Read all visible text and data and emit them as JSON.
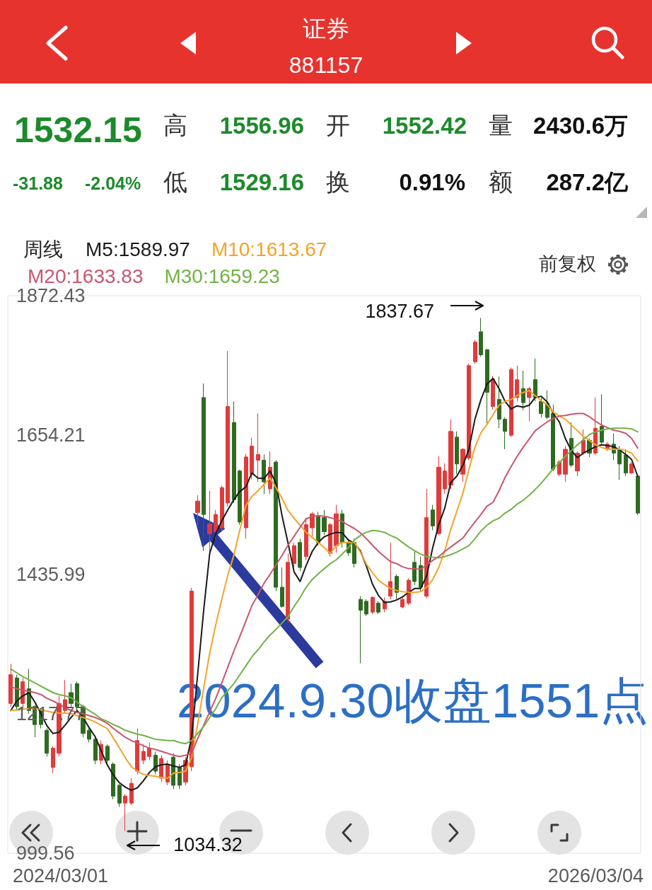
{
  "chart_data": {
    "type": "candlestick",
    "title": "证券",
    "subtitle": "881157",
    "legend_title": "周线",
    "categories": [
      null,
      null,
      null,
      null,
      null,
      null,
      null,
      null,
      null,
      null,
      null,
      null,
      null,
      null,
      null,
      null,
      null,
      null,
      null,
      null,
      null,
      null,
      null,
      null,
      null,
      null,
      null,
      null,
      null,
      null,
      null,
      null,
      null,
      null,
      null,
      null,
      null,
      null,
      null,
      null,
      null,
      null,
      null,
      null,
      null,
      null,
      null,
      null,
      null,
      null,
      null,
      null,
      null,
      null,
      null,
      null,
      null,
      null,
      null,
      null,
      null,
      null,
      null,
      null,
      null,
      null,
      null,
      null,
      null,
      null,
      null,
      null,
      null,
      null,
      null,
      null,
      null,
      null,
      null,
      null,
      null,
      null,
      null,
      null,
      null,
      null,
      null,
      null,
      null,
      null,
      null,
      null,
      null,
      null,
      null,
      null,
      null,
      null,
      null,
      null,
      null,
      null,
      null,
      null,
      null
    ],
    "ohlc": [
      [
        1234,
        1296,
        1229,
        1279
      ],
      [
        1274,
        1279,
        1223,
        1229
      ],
      [
        1234,
        1274,
        1226,
        1268
      ],
      [
        1257,
        1288,
        1218,
        1223
      ],
      [
        1229,
        1232,
        1181,
        1201
      ],
      [
        1223,
        1226,
        1195,
        1201
      ],
      [
        1192,
        1195,
        1151,
        1156
      ],
      [
        1134,
        1167,
        1125,
        1164
      ],
      [
        1156,
        1246,
        1151,
        1234
      ],
      [
        1223,
        1271,
        1218,
        1240
      ],
      [
        1251,
        1265,
        1229,
        1234
      ],
      [
        1265,
        1268,
        1223,
        1229
      ],
      [
        1229,
        1232,
        1181,
        1187
      ],
      [
        1192,
        1195,
        1173,
        1178
      ],
      [
        1178,
        1181,
        1139,
        1145
      ],
      [
        1145,
        1176,
        1139,
        1170
      ],
      [
        1167,
        1170,
        1139,
        1145
      ],
      [
        1139,
        1142,
        1084,
        1089
      ],
      [
        1106,
        1108,
        1072,
        1078
      ],
      [
        1078,
        1092,
        1034.32,
        1089
      ],
      [
        1078,
        1117,
        1075,
        1109
      ],
      [
        1128,
        1195,
        1123,
        1176
      ],
      [
        1145,
        1170,
        1139,
        1159
      ],
      [
        1151,
        1173,
        1145,
        1164
      ],
      [
        1153,
        1159,
        1123,
        1128
      ],
      [
        1117,
        1153,
        1111,
        1148
      ],
      [
        1111,
        1145,
        1106,
        1139
      ],
      [
        1150,
        1156,
        1100,
        1106
      ],
      [
        1134,
        1139,
        1100,
        1106
      ],
      [
        1111,
        1150,
        1106,
        1145
      ],
      [
        1135,
        1415,
        1128,
        1410
      ],
      [
        1533,
        1560,
        1513,
        1551
      ],
      [
        1713,
        1735,
        1473,
        1530
      ],
      [
        1500,
        1567,
        1470,
        1515
      ],
      [
        1503,
        1537,
        1492,
        1530
      ],
      [
        1509,
        1575,
        1503,
        1572
      ],
      [
        1548,
        1786,
        1542,
        1699
      ],
      [
        1674,
        1707,
        1548,
        1553
      ],
      [
        1598,
        1600,
        1514,
        1518
      ],
      [
        1509,
        1625,
        1492,
        1620
      ],
      [
        1593,
        1650,
        1585,
        1637
      ],
      [
        1615,
        1688,
        1581,
        1624
      ],
      [
        1615,
        1624,
        1562,
        1581
      ],
      [
        1570,
        1629,
        1562,
        1604
      ],
      [
        1612,
        1615,
        1410,
        1416
      ],
      [
        1416,
        1447,
        1384,
        1386
      ],
      [
        1366,
        1469,
        1360,
        1455
      ],
      [
        1453,
        1486,
        1447,
        1481
      ],
      [
        1486,
        1492,
        1441,
        1447
      ],
      [
        1464,
        1525,
        1458,
        1514
      ],
      [
        1509,
        1534,
        1495,
        1531
      ],
      [
        1528,
        1534,
        1481,
        1486
      ],
      [
        1525,
        1537,
        1498,
        1503
      ],
      [
        1469,
        1517,
        1464,
        1514
      ],
      [
        1481,
        1545,
        1470,
        1531
      ],
      [
        1531,
        1537,
        1478,
        1486
      ],
      [
        1486,
        1492,
        1465,
        1470
      ],
      [
        1486,
        1492,
        1447,
        1453
      ],
      [
        1397,
        1402,
        1297,
        1380
      ],
      [
        1394,
        1397,
        1371,
        1374
      ],
      [
        1377,
        1402,
        1374,
        1400
      ],
      [
        1391,
        1394,
        1374,
        1377
      ],
      [
        1382,
        1400,
        1377,
        1394
      ],
      [
        1402,
        1486,
        1397,
        1425
      ],
      [
        1433,
        1436,
        1397,
        1408
      ],
      [
        1385,
        1400,
        1383,
        1397
      ],
      [
        1391,
        1430,
        1388,
        1427
      ],
      [
        1455,
        1472,
        1419,
        1425
      ],
      [
        1450,
        1464,
        1410,
        1416
      ],
      [
        1402,
        1570,
        1399,
        1525
      ],
      [
        1537,
        1545,
        1505,
        1512
      ],
      [
        1500,
        1621,
        1497,
        1604
      ],
      [
        1570,
        1610,
        1562,
        1598
      ],
      [
        1576,
        1679,
        1570,
        1660
      ],
      [
        1651,
        1660,
        1593,
        1609
      ],
      [
        1593,
        1634,
        1581,
        1632
      ],
      [
        1618,
        1766,
        1615,
        1763
      ],
      [
        1769,
        1803,
        1766,
        1800
      ],
      [
        1816,
        1837.67,
        1777,
        1780
      ],
      [
        1788,
        1789,
        1673,
        1721
      ],
      [
        1699,
        1747,
        1694,
        1741
      ],
      [
        1710,
        1746,
        1665,
        1679
      ],
      [
        1679,
        1682,
        1632,
        1660
      ],
      [
        1654,
        1760,
        1651,
        1757
      ],
      [
        1713,
        1763,
        1707,
        1741
      ],
      [
        1727,
        1755,
        1693,
        1705
      ],
      [
        1713,
        1730,
        1676,
        1727
      ],
      [
        1741,
        1774,
        1707,
        1713
      ],
      [
        1707,
        1713,
        1682,
        1688
      ],
      [
        1704,
        1724,
        1679,
        1682
      ],
      [
        1688,
        1702,
        1598,
        1601
      ],
      [
        1593,
        1615,
        1590,
        1612
      ],
      [
        1593,
        1637,
        1581,
        1632
      ],
      [
        1649,
        1674,
        1604,
        1607
      ],
      [
        1598,
        1629,
        1590,
        1626
      ],
      [
        1626,
        1663,
        1623,
        1646
      ],
      [
        1646,
        1649,
        1620,
        1626
      ],
      [
        1626,
        1713,
        1623,
        1665
      ],
      [
        1668,
        1718,
        1640,
        1643
      ],
      [
        1632,
        1643,
        1629,
        1640
      ],
      [
        1640,
        1657,
        1615,
        1626
      ],
      [
        1632,
        1637,
        1584,
        1609
      ],
      [
        1623,
        1632,
        1590,
        1595
      ],
      [
        1595,
        1612,
        1593,
        1609
      ],
      [
        1590,
        1593,
        1529.16,
        1532.15
      ]
    ],
    "colors": [
      "#e03b3b",
      "#2e6b20",
      "#e03b3b",
      "#2e6b20",
      "#2e6b20",
      "#2e6b20",
      "#2e6b20",
      "#e03b3b",
      "#e03b3b",
      "#e03b3b",
      "#2e6b20",
      "#2e6b20",
      "#2e6b20",
      "#2e6b20",
      "#2e6b20",
      "#e03b3b",
      "#2e6b20",
      "#2e6b20",
      "#2e6b20",
      "#e03b3b",
      "#e03b3b",
      "#e03b3b",
      "#e03b3b",
      "#e03b3b",
      "#2e6b20",
      "#e03b3b",
      "#e03b3b",
      "#2e6b20",
      "#2e6b20",
      "#e03b3b",
      "#e03b3b",
      "#e03b3b",
      "#2e6b20",
      "#e03b3b",
      "#e03b3b",
      "#e03b3b",
      "#e03b3b",
      "#2e6b20",
      "#2e6b20",
      "#e03b3b",
      "#e03b3b",
      "#e03b3b",
      "#2e6b20",
      "#e03b3b",
      "#2e6b20",
      "#2e6b20",
      "#e03b3b",
      "#e03b3b",
      "#2e6b20",
      "#e03b3b",
      "#e03b3b",
      "#2e6b20",
      "#2e6b20",
      "#e03b3b",
      "#e03b3b",
      "#2e6b20",
      "#2e6b20",
      "#2e6b20",
      "#2e6b20",
      "#2e6b20",
      "#e03b3b",
      "#2e6b20",
      "#e03b3b",
      "#e03b3b",
      "#2e6b20",
      "#e03b3b",
      "#e03b3b",
      "#2e6b20",
      "#2e6b20",
      "#e03b3b",
      "#2e6b20",
      "#e03b3b",
      "#e03b3b",
      "#e03b3b",
      "#2e6b20",
      "#e03b3b",
      "#e03b3b",
      "#e03b3b",
      "#2e6b20",
      "#2e6b20",
      "#e03b3b",
      "#2e6b20",
      "#2e6b20",
      "#e03b3b",
      "#e03b3b",
      "#2e6b20",
      "#e03b3b",
      "#2e6b20",
      "#2e6b20",
      "#2e6b20",
      "#2e6b20",
      "#e03b3b",
      "#e03b3b",
      "#2e6b20",
      "#e03b3b",
      "#e03b3b",
      "#2e6b20",
      "#e03b3b",
      "#2e6b20",
      "#e03b3b",
      "#2e6b20",
      "#2e6b20",
      "#2e6b20",
      "#e03b3b",
      "#2e6b20"
    ],
    "series": [
      {
        "name": "M5:1589.97",
        "type": "line",
        "color": "#1a1a1a",
        "values": [
          1223,
          1238,
          1246,
          1251,
          1236,
          1218,
          1199,
          1187,
          1189,
          1200,
          1212,
          1223,
          1212,
          1196,
          1182,
          1160,
          1138,
          1122,
          1110,
          1103,
          1098,
          1102,
          1113,
          1126,
          1135,
          1138,
          1139,
          1136,
          1134,
          1138,
          1181,
          1279,
          1380,
          1469,
          1500,
          1520,
          1537,
          1553,
          1566,
          1573,
          1595,
          1587,
          1586,
          1598,
          1579,
          1528,
          1485,
          1440,
          1425,
          1450,
          1472,
          1486,
          1495,
          1499,
          1502,
          1501,
          1490,
          1485,
          1473,
          1449,
          1421,
          1403,
          1392,
          1393,
          1396,
          1401,
          1408,
          1414,
          1414,
          1434,
          1478,
          1514,
          1540,
          1580,
          1590,
          1607,
          1632,
          1679,
          1710,
          1734,
          1743,
          1727,
          1707,
          1695,
          1700,
          1698,
          1701,
          1713,
          1715,
          1706,
          1688,
          1675,
          1649,
          1630,
          1619,
          1626,
          1631,
          1636,
          1639,
          1638,
          1636,
          1631,
          1624,
          1616,
          1589.97
        ]
      },
      {
        "name": "M10:1613.67",
        "type": "line",
        "color": "#f2a42a",
        "values": [
          1223,
          1224,
          1225,
          1226,
          1226,
          1224,
          1222,
          1220,
          1219,
          1219,
          1218,
          1215,
          1212,
          1209,
          1205,
          1200,
          1195,
          1180,
          1165,
          1149,
          1135,
          1128,
          1123,
          1121,
          1120,
          1118,
          1117,
          1125,
          1126,
          1128,
          1149,
          1201,
          1258,
          1313,
          1357,
          1397,
          1435,
          1466,
          1506,
          1544,
          1558,
          1567,
          1577,
          1587,
          1572,
          1555,
          1536,
          1524,
          1513,
          1502,
          1494,
          1486,
          1478,
          1469,
          1481,
          1486,
          1486,
          1486,
          1471,
          1452,
          1439,
          1427,
          1420,
          1414,
          1411,
          1409,
          1408,
          1408,
          1409,
          1416,
          1428,
          1447,
          1473,
          1507,
          1535,
          1563,
          1600,
          1635,
          1658,
          1671,
          1686,
          1701,
          1707,
          1710,
          1716,
          1721,
          1724,
          1716,
          1708,
          1702,
          1690,
          1684,
          1679,
          1670,
          1661,
          1652,
          1646,
          1639,
          1635,
          1632,
          1632,
          1632,
          1630,
          1626,
          1613.67
        ]
      },
      {
        "name": "M20:1633.83",
        "type": "line",
        "color": "#c9566f",
        "values": [
          1260,
          1257,
          1255,
          1253,
          1251,
          1248,
          1242,
          1238,
          1233,
          1227,
          1223,
          1220,
          1218,
          1215,
          1212,
          1208,
          1203,
          1195,
          1188,
          1181,
          1176,
          1172,
          1168,
          1164,
          1162,
          1159,
          1156,
          1153,
          1151,
          1153,
          1156,
          1179,
          1200,
          1221,
          1242,
          1266,
          1291,
          1316,
          1339,
          1363,
          1387,
          1404,
          1422,
          1436,
          1451,
          1466,
          1482,
          1496,
          1510,
          1523,
          1527,
          1528,
          1527,
          1525,
          1522,
          1519,
          1513,
          1508,
          1501,
          1492,
          1482,
          1472,
          1464,
          1456,
          1453,
          1448,
          1445,
          1445,
          1444,
          1451,
          1458,
          1464,
          1472,
          1479,
          1486,
          1493,
          1506,
          1518,
          1530,
          1543,
          1549,
          1567,
          1588,
          1605,
          1621,
          1635,
          1648,
          1661,
          1668,
          1675,
          1680,
          1684,
          1685,
          1687,
          1688,
          1688,
          1683,
          1676,
          1670,
          1666,
          1662,
          1660,
          1657,
          1649,
          1633.83
        ]
      },
      {
        "name": "M30:1659.23",
        "type": "line",
        "color": "#72b246",
        "values": [
          1288,
          1282,
          1276,
          1271,
          1266,
          1261,
          1256,
          1251,
          1248,
          1246,
          1243,
          1236,
          1229,
          1223,
          1217,
          1210,
          1206,
          1201,
          1197,
          1192,
          1189,
          1186,
          1184,
          1181,
          1178,
          1177,
          1176,
          1176,
          1173,
          1171,
          1176,
          1187,
          1198,
          1212,
          1226,
          1243,
          1254,
          1265,
          1279,
          1293,
          1307,
          1318,
          1330,
          1341,
          1350,
          1360,
          1370,
          1386,
          1400,
          1416,
          1428,
          1437,
          1445,
          1453,
          1459,
          1468,
          1478,
          1490,
          1497,
          1502,
          1505,
          1504,
          1502,
          1497,
          1493,
          1486,
          1479,
          1473,
          1468,
          1464,
          1463,
          1462,
          1464,
          1467,
          1471,
          1476,
          1481,
          1492,
          1504,
          1513,
          1520,
          1524,
          1532,
          1538,
          1546,
          1552,
          1560,
          1569,
          1579,
          1590,
          1602,
          1611,
          1621,
          1630,
          1639,
          1647,
          1655,
          1659,
          1662,
          1664,
          1665,
          1665,
          1665,
          1664,
          1659.23
        ]
      }
    ],
    "ylim": [
      999.56,
      1872.43
    ],
    "yticks": [
      999.56,
      1217.77,
      1435.99,
      1654.21,
      1872.43
    ],
    "grid": false,
    "legend": "top left",
    "marker": "none",
    "line_style": "solid",
    "annotations": [
      "1532.15",
      "-31.88",
      "-2.04%",
      "高",
      "1556.96",
      "开",
      "1552.42",
      "量",
      "2430.6万",
      "低",
      "1529.16",
      "换",
      "0.91%",
      "额",
      "287.2亿",
      "前复权",
      "1837.67",
      "1034.32",
      "2024.9.30收盘1551点",
      "2024/03/01",
      "2026/03/04"
    ]
  }
}
